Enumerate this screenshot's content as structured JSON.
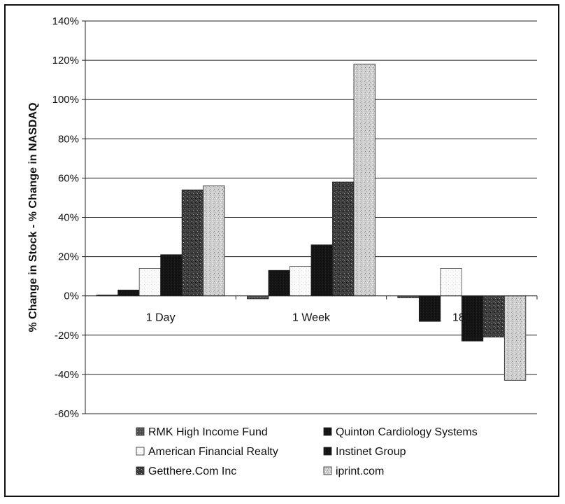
{
  "chart_data": {
    "type": "bar",
    "title": "",
    "xlabel": "",
    "ylabel": "% Change in Stock - % Change in NASDAQ",
    "categories": [
      "1 Day",
      "1 Week",
      "180"
    ],
    "ylim": [
      -60,
      140
    ],
    "yticks": [
      -60,
      -40,
      -20,
      0,
      20,
      40,
      60,
      80,
      100,
      120,
      140
    ],
    "ytick_labels": [
      "-60%",
      "-40%",
      "-20%",
      "0%",
      "20%",
      "40%",
      "60%",
      "80%",
      "100%",
      "120%",
      "140%"
    ],
    "grid": true,
    "legend_position": "bottom",
    "series": [
      {
        "name": "RMK High Income Fund",
        "values": [
          0.5,
          -1.5,
          -1
        ],
        "color": "#5a5a5a",
        "pattern": "dark"
      },
      {
        "name": "Quinton Cardiology Systems",
        "values": [
          3,
          13,
          -13
        ],
        "color": "#151515",
        "pattern": "solid"
      },
      {
        "name": "American Financial Realty",
        "values": [
          14,
          15,
          14
        ],
        "color": "#ffffff",
        "pattern": "light"
      },
      {
        "name": "Instinet Group",
        "values": [
          21,
          26,
          -23
        ],
        "color": "#1c1c1c",
        "pattern": "solid"
      },
      {
        "name": "Getthere.Com Inc",
        "values": [
          54,
          58,
          -21
        ],
        "color": "#3a3a3a",
        "pattern": "speckle"
      },
      {
        "name": "iprint.com",
        "values": [
          56,
          118,
          -43
        ],
        "color": "#d8d8d8",
        "pattern": "lightspeckle"
      }
    ]
  }
}
